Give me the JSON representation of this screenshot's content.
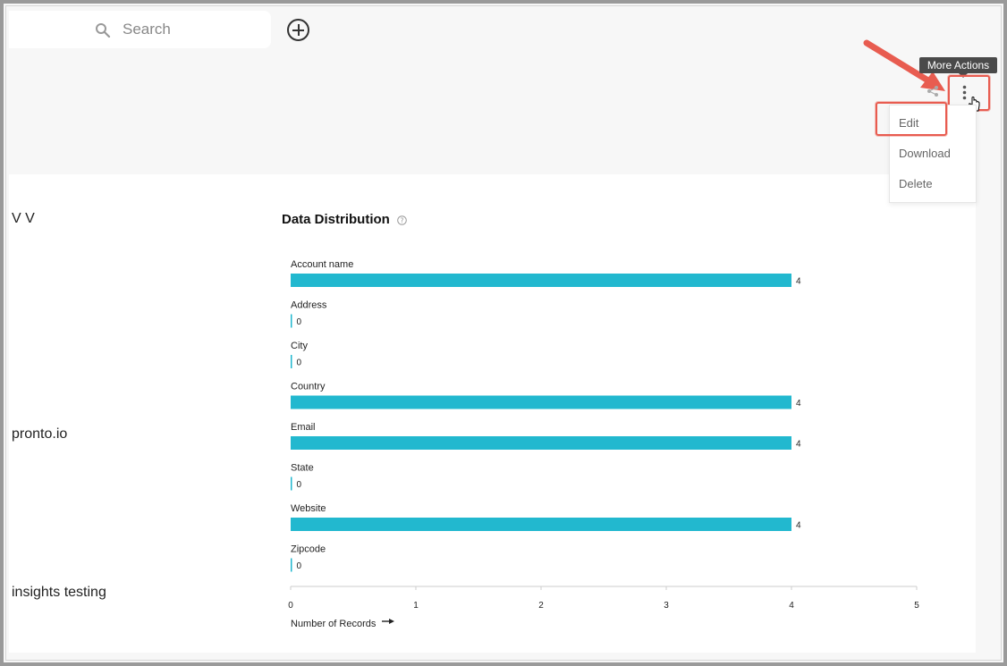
{
  "search": {
    "placeholder": "Search"
  },
  "toolbar": {
    "add_icon": "plus-circle-icon",
    "share_icon": "share-icon",
    "more_icon": "kebab-vertical-icon",
    "more_tooltip": "More Actions"
  },
  "menu": {
    "items": [
      {
        "label": "Edit"
      },
      {
        "label": "Download"
      },
      {
        "label": "Delete"
      }
    ]
  },
  "left_panel": {
    "values": [
      "V V",
      "pronto.io",
      "insights testing"
    ]
  },
  "distribution": {
    "title": "Data Distribution",
    "help_icon": "help-circle-icon"
  },
  "chart_data": {
    "type": "bar",
    "orientation": "horizontal",
    "categories": [
      "Account name",
      "Address",
      "City",
      "Country",
      "Email",
      "State",
      "Website",
      "Zipcode"
    ],
    "values": [
      4,
      0,
      0,
      4,
      4,
      0,
      4,
      0
    ],
    "xlabel": "Number of Records",
    "ylabel": "",
    "xlim": [
      0,
      5
    ],
    "xticks": [
      0,
      1,
      2,
      3,
      4,
      5
    ],
    "bar_color": "#22b8cf",
    "grid": false
  },
  "colors": {
    "accent": "#22b8cf",
    "highlight": "#e85c50"
  }
}
